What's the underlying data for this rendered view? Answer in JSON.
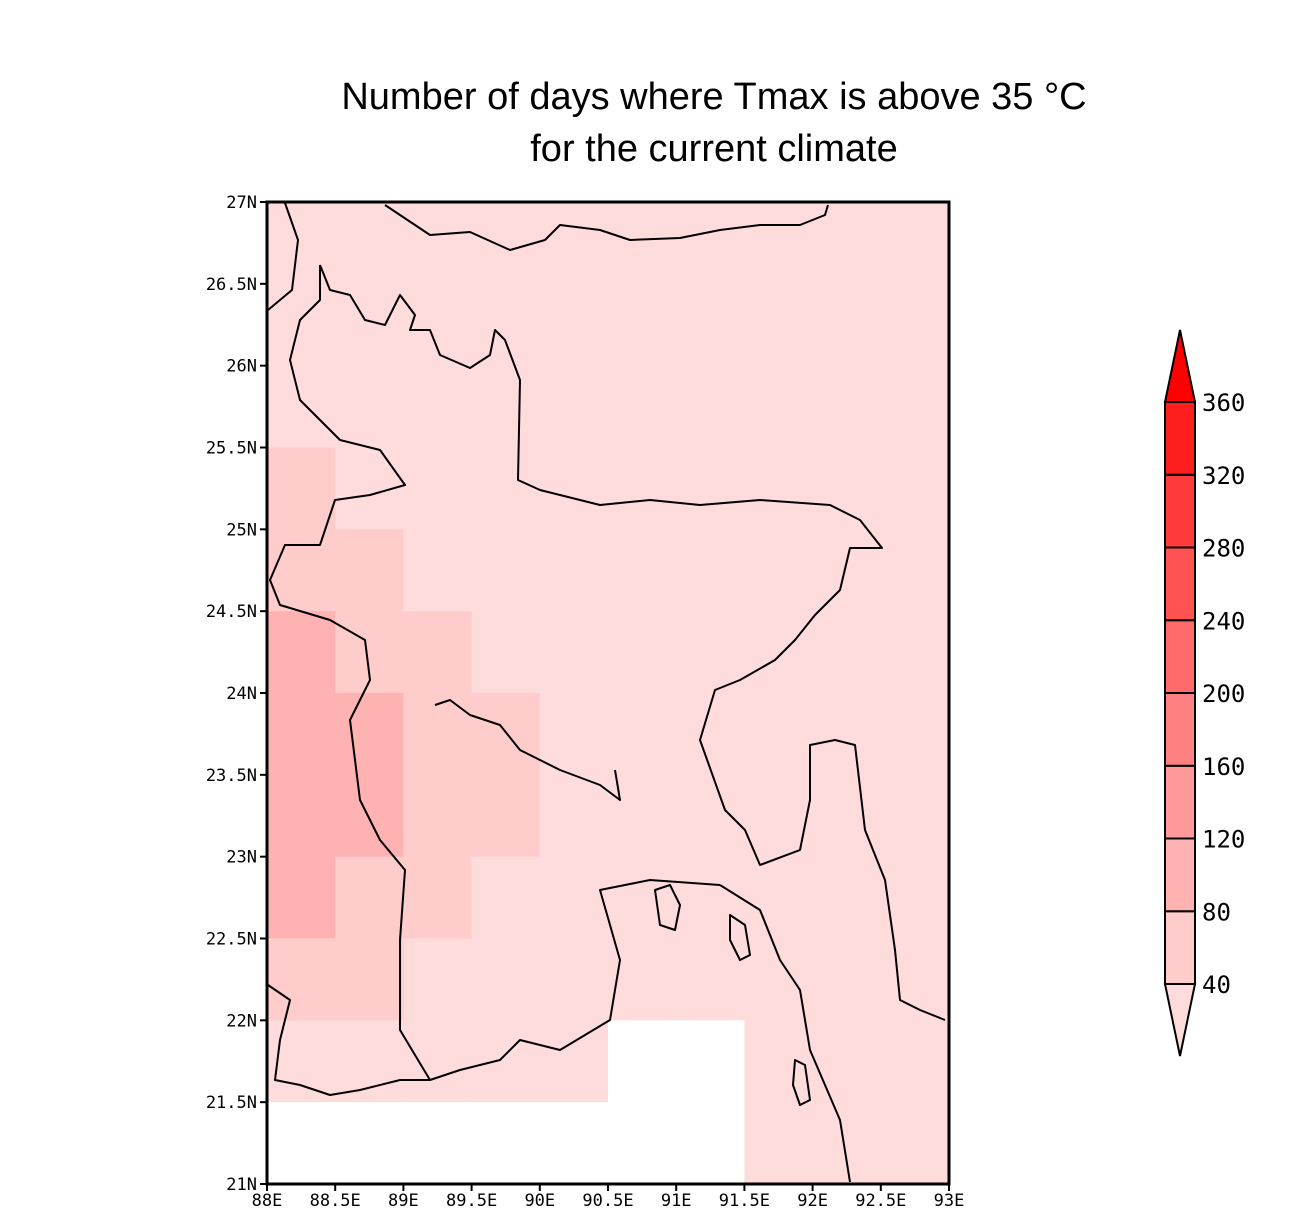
{
  "chart_data": {
    "type": "heatmap",
    "title": [
      "Number of days where Tmax is above 35 °C",
      "for the current climate"
    ],
    "x_tick_labels": [
      "88E",
      "88.5E",
      "89E",
      "89.5E",
      "90E",
      "90.5E",
      "91E",
      "91.5E",
      "92E",
      "92.5E",
      "93E"
    ],
    "y_tick_labels": [
      "21N",
      "21.5N",
      "22N",
      "22.5N",
      "23N",
      "23.5N",
      "24N",
      "24.5N",
      "25N",
      "25.5N",
      "26N",
      "26.5N",
      "27N"
    ],
    "xlim": [
      88,
      93
    ],
    "ylim": [
      21,
      27
    ],
    "cell_size_deg": 0.5,
    "rows_from_north": [
      [
        "<40",
        "<40",
        "<40",
        "<40",
        "<40",
        "<40",
        "<40",
        "<40",
        "<40",
        "<40"
      ],
      [
        "<40",
        "<40",
        "<40",
        "<40",
        "<40",
        "<40",
        "<40",
        "<40",
        "<40",
        "<40"
      ],
      [
        "<40",
        "<40",
        "<40",
        "<40",
        "<40",
        "<40",
        "<40",
        "<40",
        "<40",
        "<40"
      ],
      [
        "40-80",
        "<40",
        "<40",
        "<40",
        "<40",
        "<40",
        "<40",
        "<40",
        "<40",
        "<40"
      ],
      [
        "40-80",
        "40-80",
        "<40",
        "<40",
        "<40",
        "<40",
        "<40",
        "<40",
        "<40",
        "<40"
      ],
      [
        "80-120",
        "40-80",
        "40-80",
        "<40",
        "<40",
        "<40",
        "<40",
        "<40",
        "<40",
        "<40"
      ],
      [
        "80-120",
        "80-120",
        "40-80",
        "40-80",
        "<40",
        "<40",
        "<40",
        "<40",
        "<40",
        "<40"
      ],
      [
        "80-120",
        "80-120",
        "40-80",
        "40-80",
        "<40",
        "<40",
        "<40",
        "<40",
        "<40",
        "<40"
      ],
      [
        "80-120",
        "40-80",
        "40-80",
        "<40",
        "<40",
        "<40",
        "<40",
        "<40",
        "<40",
        "<40"
      ],
      [
        "40-80",
        "40-80",
        "<40",
        "<40",
        "<40",
        "<40",
        "<40",
        "<40",
        "<40",
        "<40"
      ],
      [
        "<40",
        "<40",
        "<40",
        "<40",
        "<40",
        null,
        null,
        "<40",
        "<40",
        "<40"
      ],
      [
        null,
        null,
        null,
        null,
        null,
        null,
        null,
        "<40",
        "<40",
        "<40"
      ]
    ],
    "colorbar": {
      "levels": [
        40,
        80,
        120,
        160,
        200,
        240,
        280,
        320,
        360
      ],
      "bins": [
        "<40",
        "40-80",
        "80-120",
        "120-160",
        "160-200",
        "200-240",
        "240-280",
        "280-320",
        "320-360",
        ">360"
      ],
      "colors": [
        "#ffdcdc",
        "#ffcccc",
        "#ffb2b2",
        "#ff9999",
        "#ff8080",
        "#ff6b6b",
        "#ff5252",
        "#ff3a3a",
        "#ff1e1e",
        "#ff0000"
      ],
      "extend": "both",
      "placement": "right"
    },
    "missing_color": "#ffffff",
    "coastlines": true
  }
}
